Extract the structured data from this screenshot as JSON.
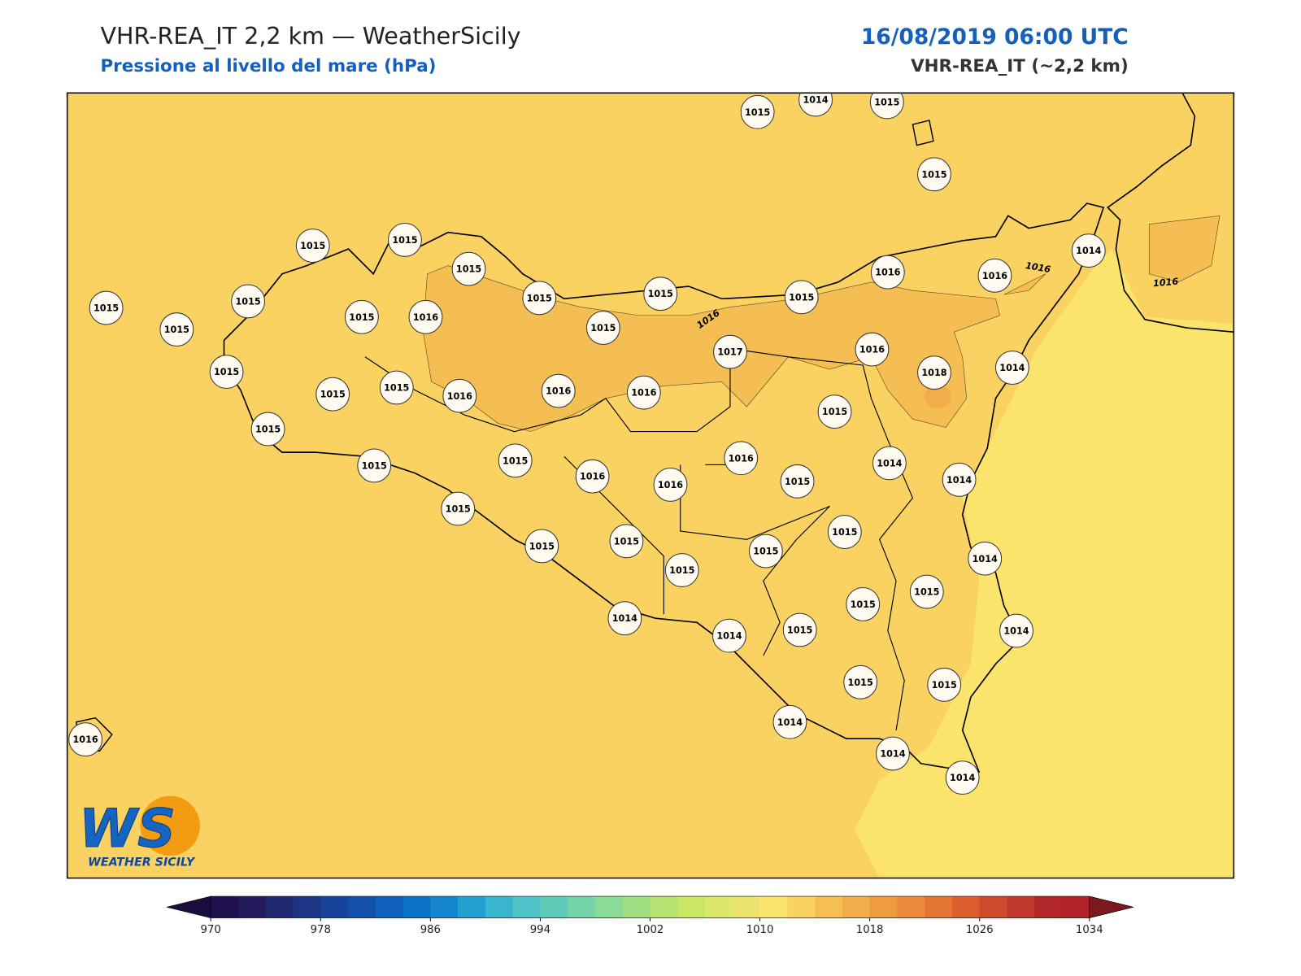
{
  "header": {
    "title": "VHR-REA_IT 2,2 km — WeatherSicily",
    "subtitle": "Pressione al livello del mare (hPa)",
    "datetime": "16/08/2019 06:00 UTC",
    "model": "VHR-REA_IT (~2,2 km)"
  },
  "map": {
    "stations": [
      1015,
      1014,
      1015,
      1015,
      1015,
      1015,
      1015,
      1015,
      1015,
      1015,
      1016,
      1016,
      1014,
      1015,
      1015,
      1015,
      1015,
      1016,
      1015,
      1017,
      1016,
      1018,
      1014,
      1015,
      1015,
      1015,
      1016,
      1016,
      1016,
      1015,
      1015,
      1015,
      1015,
      1016,
      1016,
      1016,
      1015,
      1014,
      1014,
      1015,
      1015,
      1015,
      1015,
      1015,
      1015,
      1014,
      1015,
      1015,
      1014,
      1014,
      1015,
      1014,
      1015,
      1015,
      1014,
      1014,
      1014,
      1016
    ],
    "contour_labels": [
      1016,
      1016,
      1016
    ]
  },
  "colorbar": {
    "levels": [
      970,
      972,
      974,
      976,
      978,
      980,
      982,
      984,
      986,
      988,
      990,
      992,
      994,
      996,
      998,
      1000,
      1002,
      1004,
      1006,
      1008,
      1010,
      1012,
      1014,
      1016,
      1018,
      1020,
      1022,
      1024,
      1026,
      1028,
      1030,
      1032,
      1034
    ],
    "colors": [
      "#20104f",
      "#231a5e",
      "#202870",
      "#1c3584",
      "#17439a",
      "#1250ab",
      "#0d60bd",
      "#0b71c8",
      "#1386cf",
      "#22a0d2",
      "#38b6d0",
      "#4dc3c8",
      "#60cbb8",
      "#75d4a7",
      "#8adb96",
      "#a0df82",
      "#b5e36f",
      "#c9e665",
      "#dbe86b",
      "#ece36f",
      "#fbe46c",
      "#f9d262",
      "#f5bf53",
      "#f2ad48",
      "#ef9c41",
      "#ec893a",
      "#e67534",
      "#dc5e2f",
      "#cf4a2d",
      "#c2372b",
      "#b42728",
      "#b22228"
    ],
    "under_color": "#1b0d40",
    "over_color": "#7a1a1e",
    "ticks": [
      970,
      978,
      986,
      994,
      1002,
      1010,
      1018,
      1026,
      1034
    ]
  },
  "logo": {
    "mark": "WS",
    "name": "WEATHER SICILY"
  }
}
